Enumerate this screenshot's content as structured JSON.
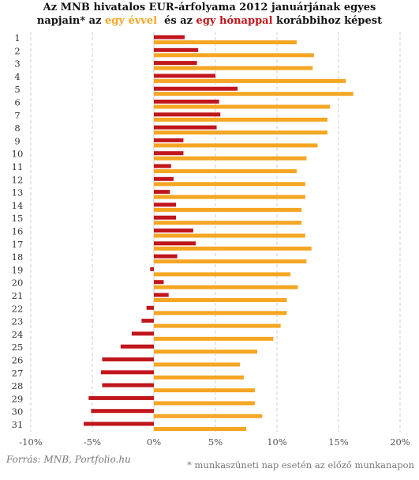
{
  "title": {
    "line1": "Az MNB hivatalos EUR-árfolyama  2012 januárjának egyes",
    "line2_pre": "napjain* az ",
    "line2_year": "egy évvel",
    "line2_mid": "  és az ",
    "line2_month": "egy hónappal",
    "line2_post": " korábbihoz képest"
  },
  "source": "Forrás: MNB, Portfolio.hu",
  "footnote": "* munkaszüneti nap esetén az előző munkanapon",
  "colors": {
    "year": "#f5a623",
    "month": "#c0161c",
    "grid": "#cfcfcf"
  },
  "chart_data": {
    "type": "bar",
    "orientation": "horizontal",
    "categories": [
      "1",
      "2",
      "3",
      "4",
      "5",
      "6",
      "7",
      "8",
      "9",
      "10",
      "11",
      "12",
      "13",
      "14",
      "15",
      "16",
      "17",
      "18",
      "19",
      "20",
      "21",
      "22",
      "23",
      "24",
      "25",
      "26",
      "27",
      "28",
      "29",
      "30",
      "31"
    ],
    "series": [
      {
        "name": "egy hónappal",
        "color": "#c0161c",
        "values": [
          2.5,
          3.6,
          3.5,
          5.0,
          6.8,
          5.3,
          5.4,
          5.1,
          2.4,
          2.4,
          1.4,
          1.6,
          1.3,
          1.8,
          1.8,
          3.2,
          3.4,
          1.9,
          -0.3,
          0.8,
          1.2,
          -0.6,
          -1.0,
          -1.8,
          -2.7,
          -4.2,
          -4.3,
          -4.2,
          -5.3,
          -5.1,
          -5.7
        ]
      },
      {
        "name": "egy évvel",
        "color": "#f5a623",
        "values": [
          11.6,
          13.0,
          12.9,
          15.6,
          16.2,
          14.3,
          14.1,
          14.1,
          13.3,
          12.4,
          11.6,
          12.3,
          12.3,
          12.0,
          12.0,
          12.3,
          12.8,
          12.4,
          11.1,
          11.7,
          10.8,
          10.8,
          10.3,
          9.7,
          8.4,
          7.0,
          7.3,
          8.2,
          8.2,
          8.8,
          7.5
        ]
      }
    ],
    "xlim": [
      -10,
      20
    ],
    "xticks": [
      -10,
      -5,
      0,
      5,
      10,
      15,
      20
    ],
    "tick_labels": [
      "-10%",
      "-5%",
      "0%",
      "5%",
      "10%",
      "15%",
      "20%"
    ],
    "grid": true
  }
}
